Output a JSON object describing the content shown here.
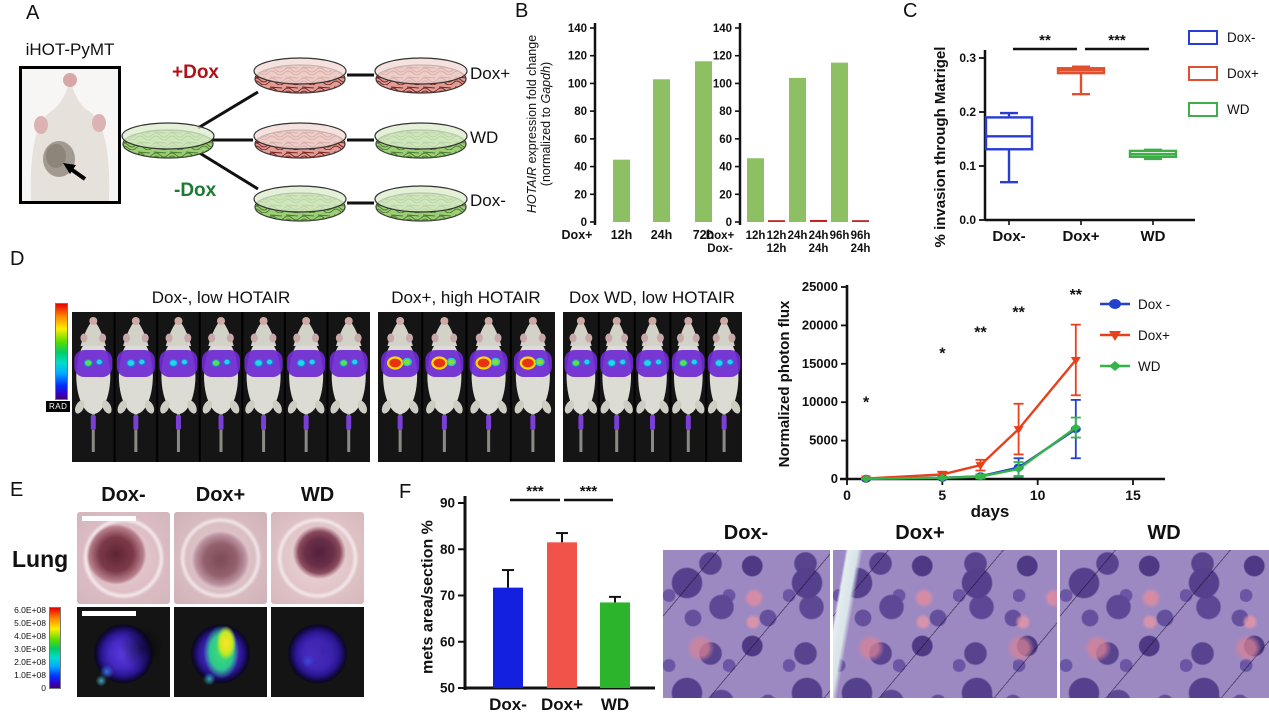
{
  "panels": {
    "A": {
      "label": "A",
      "photo_caption": "iHOT-PyMT",
      "plus_dox": "+Dox",
      "minus_dox": "-Dox",
      "row_labels": [
        "Dox+",
        "WD",
        "Dox-"
      ],
      "colors": {
        "plus_dox_text": "#b0121b",
        "minus_dox_text": "#1c7a33",
        "green_dish": "#9ecd77",
        "red_dish": "#de9e97"
      }
    },
    "B": {
      "label": "B",
      "ylabel_parts": [
        {
          "text": "HOTAIR",
          "italic": true,
          "line": 1
        },
        {
          "text": " expression fold change",
          "italic": false,
          "line": 1
        },
        {
          "text": "(normalized to ",
          "italic": false,
          "line": 2
        },
        {
          "text": "Gapdh",
          "italic": true,
          "line": 2
        },
        {
          "text": ")",
          "italic": false,
          "line": 2
        }
      ]
    },
    "C": {
      "label": "C"
    },
    "D": {
      "label": "D",
      "groups": [
        {
          "title": "Dox-, low HOTAIR",
          "mice": 7,
          "signal": "low"
        },
        {
          "title": "Dox+, high HOTAIR",
          "mice": 4,
          "signal": "high"
        },
        {
          "title": "Dox WD, low HOTAIR",
          "mice": 5,
          "signal": "low"
        }
      ],
      "colorbar_label": "RAD"
    },
    "E": {
      "label": "E",
      "row_label": "Lung",
      "columns": [
        "Dox-",
        "Dox+",
        "WD"
      ],
      "scale_values": [
        "6.0E+08",
        "5.0E+08",
        "4.0E+08",
        "3.0E+08",
        "2.0E+08",
        "1.0E+08",
        "0"
      ]
    },
    "F": {
      "label": "F",
      "histology_columns": [
        "Dox-",
        "Dox+",
        "WD"
      ]
    }
  },
  "chart_data": [
    {
      "id": "b_left",
      "type": "bar",
      "ylabel": "HOTAIR expression fold change (normalized to Gapdh)",
      "ylim": [
        0,
        140
      ],
      "yticks": [
        0,
        20,
        40,
        60,
        80,
        100,
        120,
        140
      ],
      "row_label": "Dox+",
      "categories": [
        "12h",
        "24h",
        "72h"
      ],
      "values": [
        45,
        103,
        116
      ],
      "bar_color": "#8dc063"
    },
    {
      "id": "b_right",
      "type": "bar",
      "ylabel": "HOTAIR expression fold change (normalized to Gapdh)",
      "ylim": [
        0,
        140
      ],
      "yticks": [
        0,
        20,
        40,
        60,
        80,
        100,
        120,
        140
      ],
      "row_labels": [
        "Dox+",
        "Dox-"
      ],
      "bars": [
        {
          "value": 46,
          "color": "#8dc063",
          "top": "12h",
          "bottom": ""
        },
        {
          "value": 1,
          "color": "#c42421",
          "top": "12h",
          "bottom": "12h"
        },
        {
          "value": 104,
          "color": "#8dc063",
          "top": "24h",
          "bottom": ""
        },
        {
          "value": 1.5,
          "color": "#c42421",
          "top": "24h",
          "bottom": "24h"
        },
        {
          "value": 115,
          "color": "#8dc063",
          "top": "96h",
          "bottom": ""
        },
        {
          "value": 0.8,
          "color": "#c42421",
          "top": "96h",
          "bottom": "24h"
        }
      ]
    },
    {
      "id": "c_box",
      "type": "box",
      "ylabel": "% invasion through Matrigel",
      "ylim": [
        0,
        0.32
      ],
      "yticks": [
        0.0,
        0.1,
        0.2,
        0.3
      ],
      "boxes": [
        {
          "label": "Dox-",
          "color": "#2a3cd6",
          "whisker_low": 0.07,
          "q1": 0.131,
          "median": 0.155,
          "q3": 0.19,
          "whisker_high": 0.198
        },
        {
          "label": "Dox+",
          "color": "#e04f2e",
          "whisker_low": 0.233,
          "q1": 0.272,
          "median": 0.277,
          "q3": 0.281,
          "whisker_high": 0.284
        },
        {
          "label": "WD",
          "color": "#3fae49",
          "whisker_low": 0.113,
          "q1": 0.117,
          "median": 0.122,
          "q3": 0.128,
          "whisker_high": 0.13
        }
      ],
      "significance": [
        {
          "groups": [
            "Dox-",
            "Dox+"
          ],
          "label": "**"
        },
        {
          "groups": [
            "Dox+",
            "WD"
          ],
          "label": "***"
        }
      ],
      "legend": [
        {
          "label": "Dox-",
          "color": "#2a3cd6"
        },
        {
          "label": "Dox+",
          "color": "#e04f2e"
        },
        {
          "label": "WD",
          "color": "#3fae49"
        }
      ]
    },
    {
      "id": "d_line",
      "type": "line",
      "ylabel": "Normalized photon flux",
      "xlabel": "days",
      "xlim": [
        0,
        15
      ],
      "xticks": [
        0,
        5,
        10,
        15
      ],
      "ylim": [
        0,
        25000
      ],
      "yticks": [
        0,
        5000,
        10000,
        15000,
        20000,
        25000
      ],
      "x": [
        1,
        5,
        7,
        9,
        12
      ],
      "series": [
        {
          "name": "Dox -",
          "color": "#2440cf",
          "marker": "circle",
          "values": [
            30,
            150,
            350,
            1500,
            6500
          ],
          "err": [
            30,
            100,
            250,
            1200,
            3800
          ]
        },
        {
          "name": "Dox+",
          "color": "#e8401c",
          "marker": "triangle-down",
          "values": [
            60,
            600,
            1800,
            6500,
            15500
          ],
          "err": [
            50,
            350,
            700,
            3300,
            4600
          ]
        },
        {
          "name": "WD",
          "color": "#35b44a",
          "marker": "diamond",
          "values": [
            30,
            150,
            320,
            1300,
            6700
          ],
          "err": [
            30,
            100,
            250,
            900,
            1300
          ]
        }
      ],
      "annotations": [
        {
          "x": 1,
          "y": 9300,
          "label": "*"
        },
        {
          "x": 5,
          "y": 15700,
          "label": "*"
        },
        {
          "x": 7,
          "y": 18400,
          "label": "**"
        },
        {
          "x": 9,
          "y": 21000,
          "label": "**"
        },
        {
          "x": 12,
          "y": 23300,
          "label": "**"
        }
      ]
    },
    {
      "id": "f_bar",
      "type": "bar",
      "ylabel": "mets area/section %",
      "ylim": [
        50,
        90
      ],
      "yticks": [
        50,
        60,
        70,
        80,
        90
      ],
      "categories": [
        "Dox-",
        "Dox+",
        "WD"
      ],
      "values": [
        71.7,
        81.5,
        68.5
      ],
      "errors": [
        3.8,
        2.0,
        1.2
      ],
      "colors": [
        "#1420e0",
        "#f25348",
        "#2cb52c"
      ],
      "significance": [
        {
          "groups": [
            "Dox-",
            "Dox+"
          ],
          "label": "***"
        },
        {
          "groups": [
            "Dox+",
            "WD"
          ],
          "label": "***"
        }
      ]
    }
  ]
}
